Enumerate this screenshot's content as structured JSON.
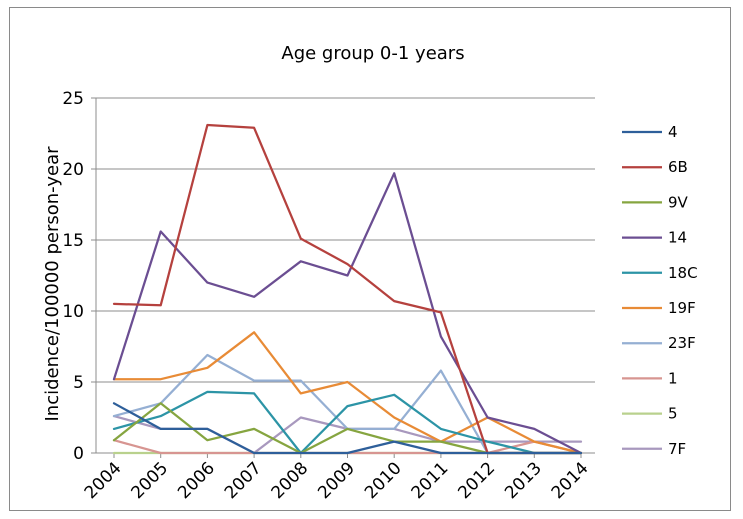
{
  "chart_data": {
    "type": "line",
    "title": "Age group 0-1 years",
    "xlabel": "",
    "ylabel": "Incidence/100000 person-year",
    "ylim": [
      0,
      25
    ],
    "yticks": [
      0,
      5,
      10,
      15,
      20,
      25
    ],
    "grid": "horizontal",
    "legend": "right",
    "x": [
      "2004",
      "2005",
      "2006",
      "2007",
      "2008",
      "2009",
      "2010",
      "2011",
      "2012",
      "2013",
      "2014"
    ],
    "series": [
      {
        "name": "4",
        "color": "#2E5F9A",
        "values": [
          3.5,
          1.7,
          1.7,
          0,
          0,
          0,
          0.8,
          0,
          0,
          0,
          0
        ]
      },
      {
        "name": "6B",
        "color": "#B5413E",
        "values": [
          10.5,
          10.4,
          23.1,
          22.9,
          15.1,
          13.3,
          10.7,
          9.9,
          0,
          0,
          0
        ]
      },
      {
        "name": "9V",
        "color": "#86A540",
        "values": [
          0.9,
          3.5,
          0.9,
          1.7,
          0,
          1.7,
          0.8,
          0.8,
          0,
          0,
          0
        ]
      },
      {
        "name": "14",
        "color": "#6B4E92",
        "values": [
          5.2,
          15.6,
          12.0,
          11.0,
          13.5,
          12.5,
          19.7,
          8.2,
          2.5,
          1.7,
          0
        ]
      },
      {
        "name": "18C",
        "color": "#2C94A6",
        "values": [
          1.7,
          2.6,
          4.3,
          4.2,
          0,
          3.3,
          4.1,
          1.7,
          0.8,
          0,
          0
        ]
      },
      {
        "name": "19F",
        "color": "#E88B36",
        "values": [
          5.2,
          5.2,
          6.0,
          8.5,
          4.2,
          5.0,
          2.5,
          0.8,
          2.5,
          0.8,
          0
        ]
      },
      {
        "name": "23F",
        "color": "#95AFD3",
        "values": [
          2.6,
          3.5,
          6.9,
          5.1,
          5.1,
          1.7,
          1.7,
          5.8,
          0,
          0,
          0
        ]
      },
      {
        "name": "1",
        "color": "#D79591",
        "values": [
          0.9,
          0,
          0,
          0,
          0,
          0,
          0,
          0,
          0,
          0.8,
          0
        ]
      },
      {
        "name": "5",
        "color": "#B9D18D",
        "values": [
          0,
          0,
          0,
          0,
          0,
          0,
          0,
          0,
          0,
          0,
          0
        ]
      },
      {
        "name": "7F",
        "color": "#A898BE",
        "values": [
          2.6,
          1.7,
          1.7,
          0,
          2.5,
          1.7,
          1.7,
          0.8,
          0.8,
          0.8,
          0.8
        ]
      }
    ]
  }
}
